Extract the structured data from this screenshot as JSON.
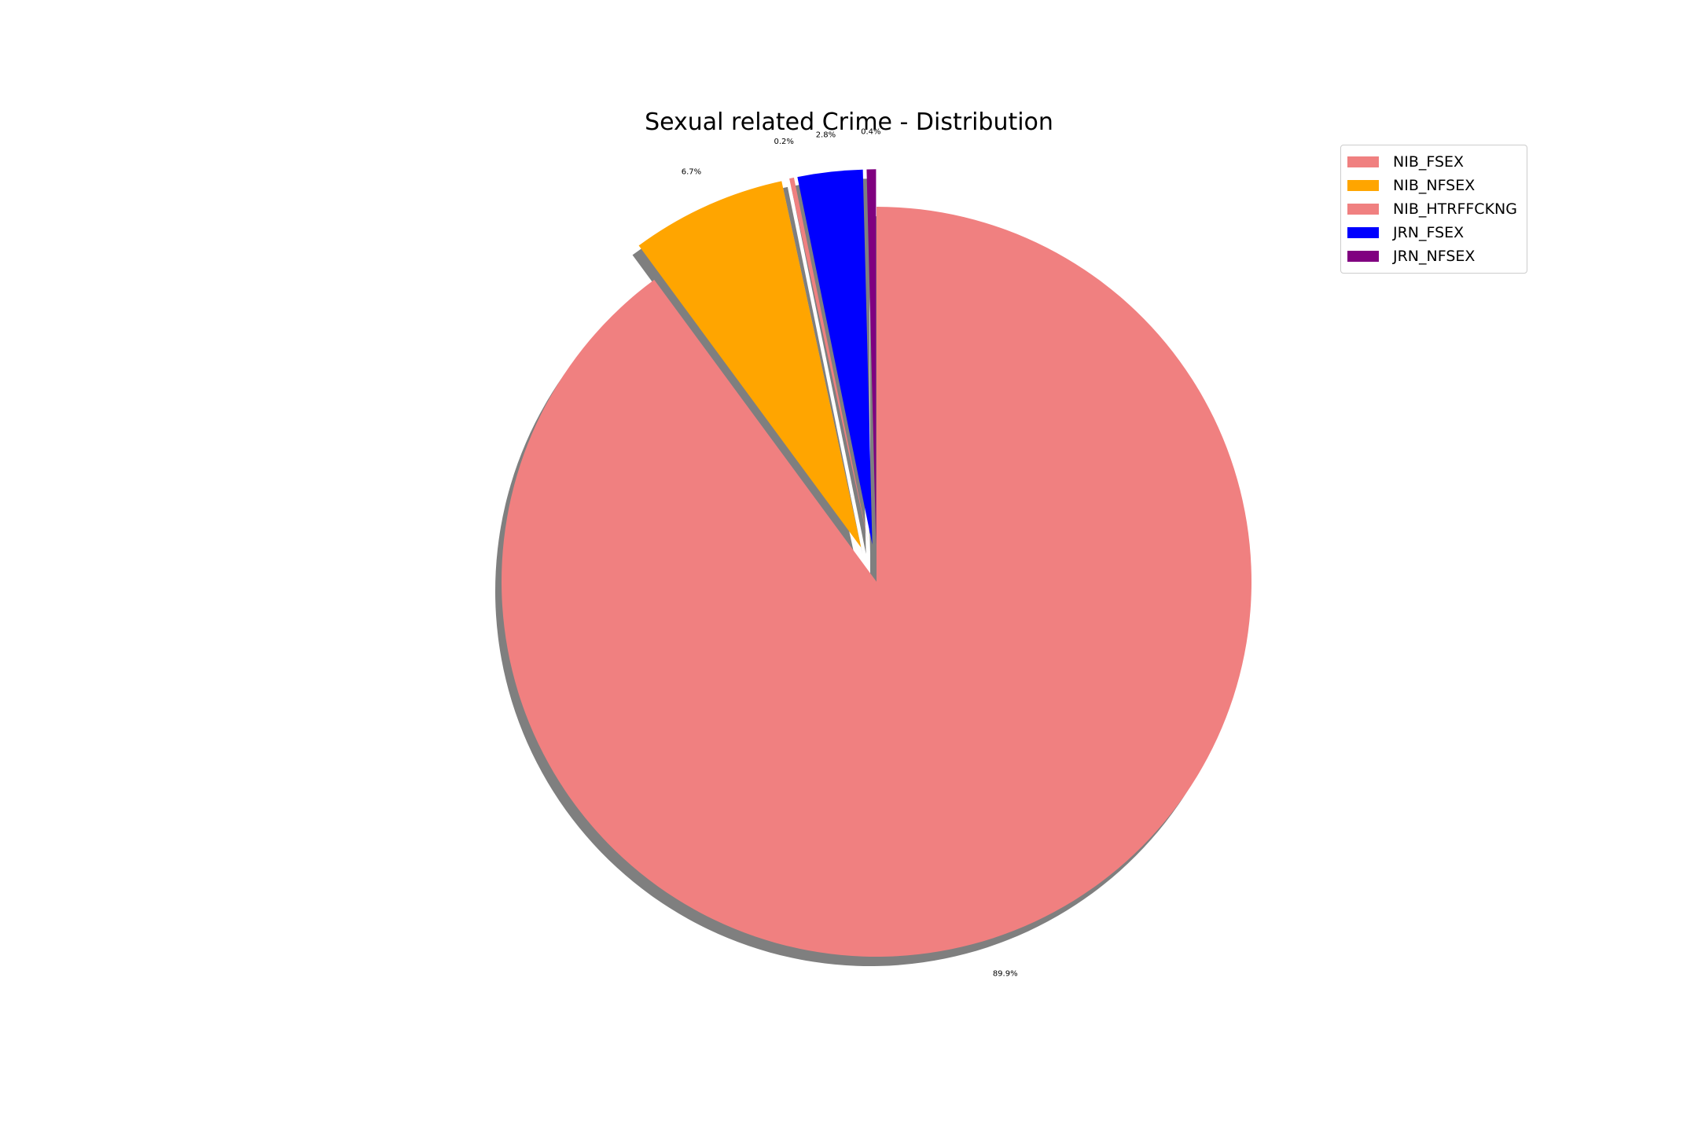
{
  "chart_data": {
    "type": "pie",
    "title": "Sexual related Crime - Distribution",
    "start_angle_deg": 90,
    "direction": "clockwise",
    "shadow": true,
    "legend_position": "top-right",
    "slices": [
      {
        "label": "NIB_FSEX",
        "percent": 89.9,
        "percent_label": "89.9%",
        "color": "#f08080",
        "exploded": false
      },
      {
        "label": "NIB_NFSEX",
        "percent": 6.7,
        "percent_label": "6.7%",
        "color": "#ffa500",
        "exploded": true
      },
      {
        "label": "NIB_HTRFFCKNG",
        "percent": 0.2,
        "percent_label": "0.2%",
        "color": "#f08080",
        "exploded": true
      },
      {
        "label": "JRN_FSEX",
        "percent": 2.8,
        "percent_label": "2.8%",
        "color": "#0000ff",
        "exploded": true
      },
      {
        "label": "JRN_NFSEX",
        "percent": 0.4,
        "percent_label": "0.4%",
        "color": "#800080",
        "exploded": true
      }
    ]
  }
}
